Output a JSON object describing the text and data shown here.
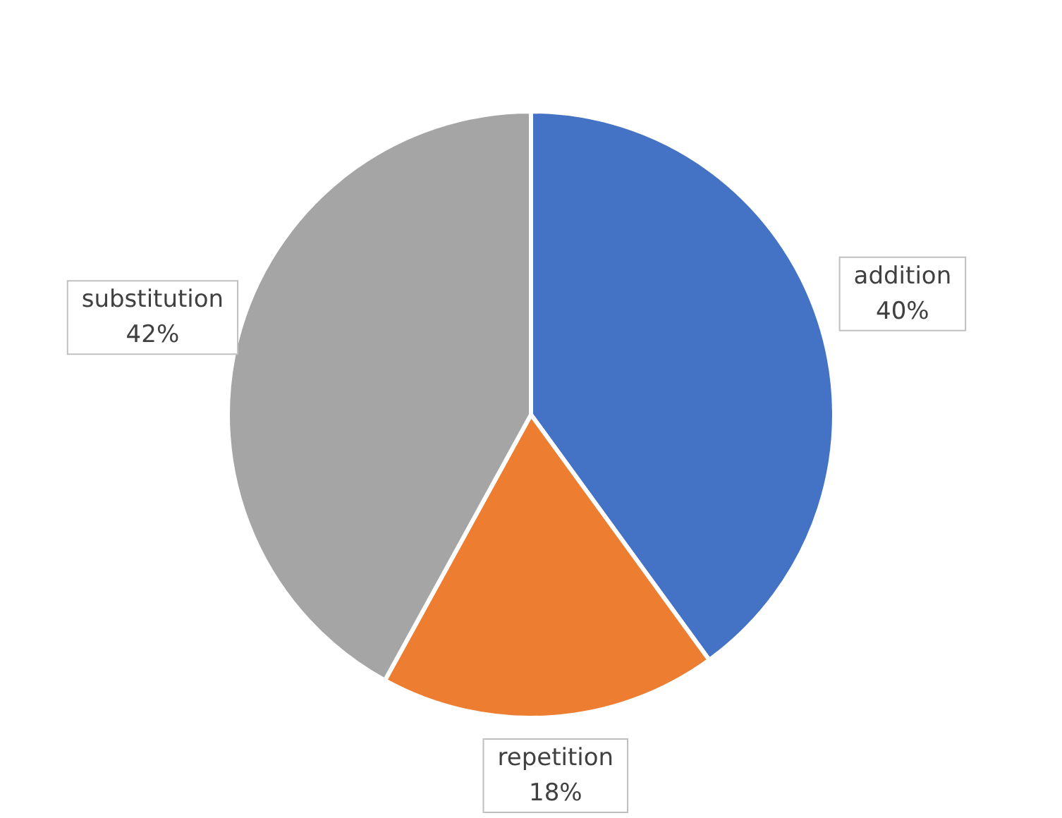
{
  "chart_data": {
    "type": "pie",
    "categories": [
      "addition",
      "repetition",
      "substitution"
    ],
    "values": [
      40,
      18,
      42
    ],
    "colors": [
      "#4472c4",
      "#ed7d31",
      "#a5a5a5"
    ],
    "value_labels": [
      "40%",
      "18%",
      "42%"
    ],
    "legend": false
  }
}
